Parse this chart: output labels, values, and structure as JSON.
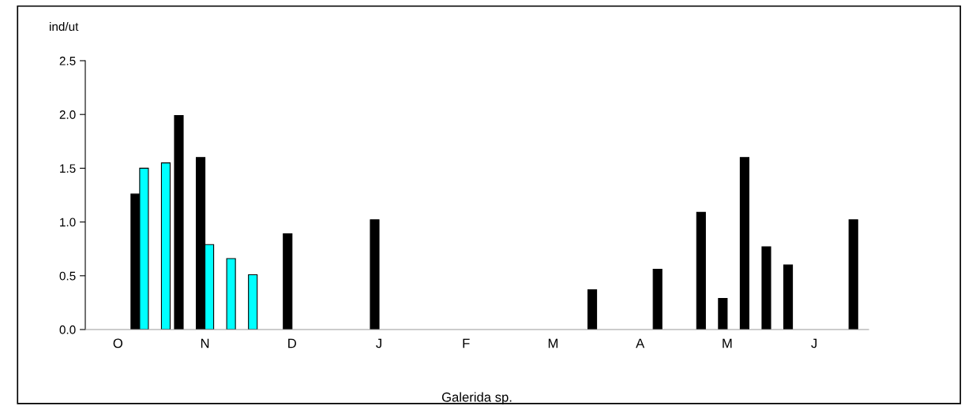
{
  "chart_data": {
    "type": "bar",
    "xlabel": "Galerida sp.",
    "ylabel": "ind/ut",
    "categories": [
      null,
      "O",
      null,
      null,
      null,
      "N",
      null,
      null,
      null,
      "D",
      null,
      null,
      null,
      "J",
      null,
      null,
      null,
      "F",
      null,
      null,
      null,
      "M",
      null,
      null,
      null,
      "A",
      null,
      null,
      null,
      "M",
      null,
      null,
      null,
      "J",
      null,
      null
    ],
    "series": [
      {
        "color": "#000000",
        "values": [
          null,
          null,
          1.26,
          null,
          1.99,
          1.6,
          null,
          null,
          null,
          0.89,
          null,
          null,
          null,
          1.02,
          null,
          null,
          null,
          null,
          null,
          null,
          null,
          null,
          null,
          0.37,
          null,
          null,
          0.56,
          null,
          1.09,
          0.29,
          1.6,
          0.77,
          0.6,
          null,
          null,
          1.02
        ]
      },
      {
        "color": "#00ffff",
        "values": [
          null,
          null,
          1.5,
          1.55,
          null,
          0.79,
          0.66,
          0.51,
          null,
          null,
          null,
          null,
          null,
          null,
          null,
          null,
          null,
          null,
          null,
          null,
          null,
          null,
          null,
          null,
          null,
          null,
          null,
          null,
          null,
          null,
          null,
          null,
          null,
          null,
          null,
          null
        ]
      }
    ],
    "ylim": [
      0,
      2.5
    ],
    "yticks": [
      {
        "value": 0,
        "label": "0.0"
      },
      {
        "value": 0.5,
        "label": "0.5"
      },
      {
        "value": 1,
        "label": "1.0"
      },
      {
        "value": 1.5,
        "label": "1.5"
      },
      {
        "value": 2,
        "label": "2.0"
      },
      {
        "value": 2.5,
        "label": "2.5"
      }
    ],
    "grid": false
  }
}
